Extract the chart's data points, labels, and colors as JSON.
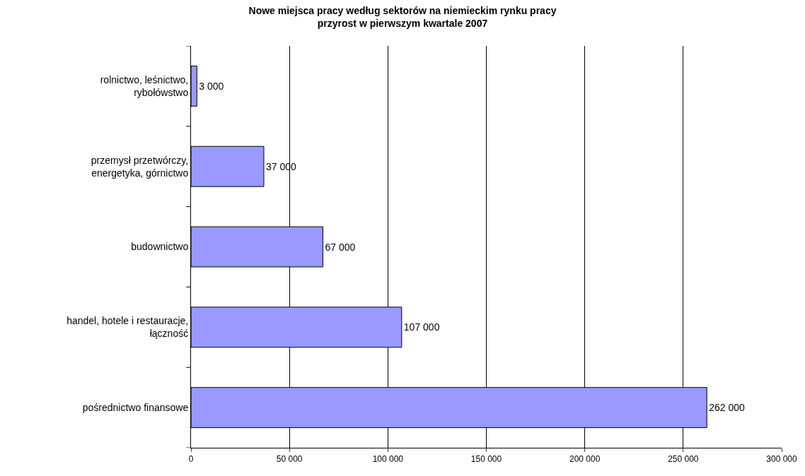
{
  "chart_data": {
    "type": "bar",
    "orientation": "horizontal",
    "title": "Nowe miejsca pracy według sektorów na niemieckim rynku pracy\nprzyrost w pierwszym kwartale 2007",
    "categories": [
      "rolnictwo, leśnictwo,\nrybołówstwo",
      "przemysł przetwórczy,\nenergetyka, górnictwo",
      "budownictwo",
      "handel, hotele i restauracje,\nłączność",
      "pośrednictwo finansowe"
    ],
    "values": [
      3000,
      37000,
      67000,
      107000,
      262000
    ],
    "value_labels": [
      "3 000",
      "37 000",
      "67 000",
      "107 000",
      "262 000"
    ],
    "color": "#9999ff",
    "xlim": [
      0,
      300000
    ],
    "xticks": [
      0,
      {
        "value": 50000,
        "label": "50 000"
      },
      {
        "value": 100000,
        "label": "100 000"
      },
      {
        "value": 150000,
        "label": "150 000"
      },
      {
        "value": 200000,
        "label": "200 000"
      },
      {
        "value": 250000,
        "label": "250 000"
      },
      {
        "value": 300000,
        "label": "300 000"
      }
    ],
    "grid": "x",
    "legend": false
  }
}
